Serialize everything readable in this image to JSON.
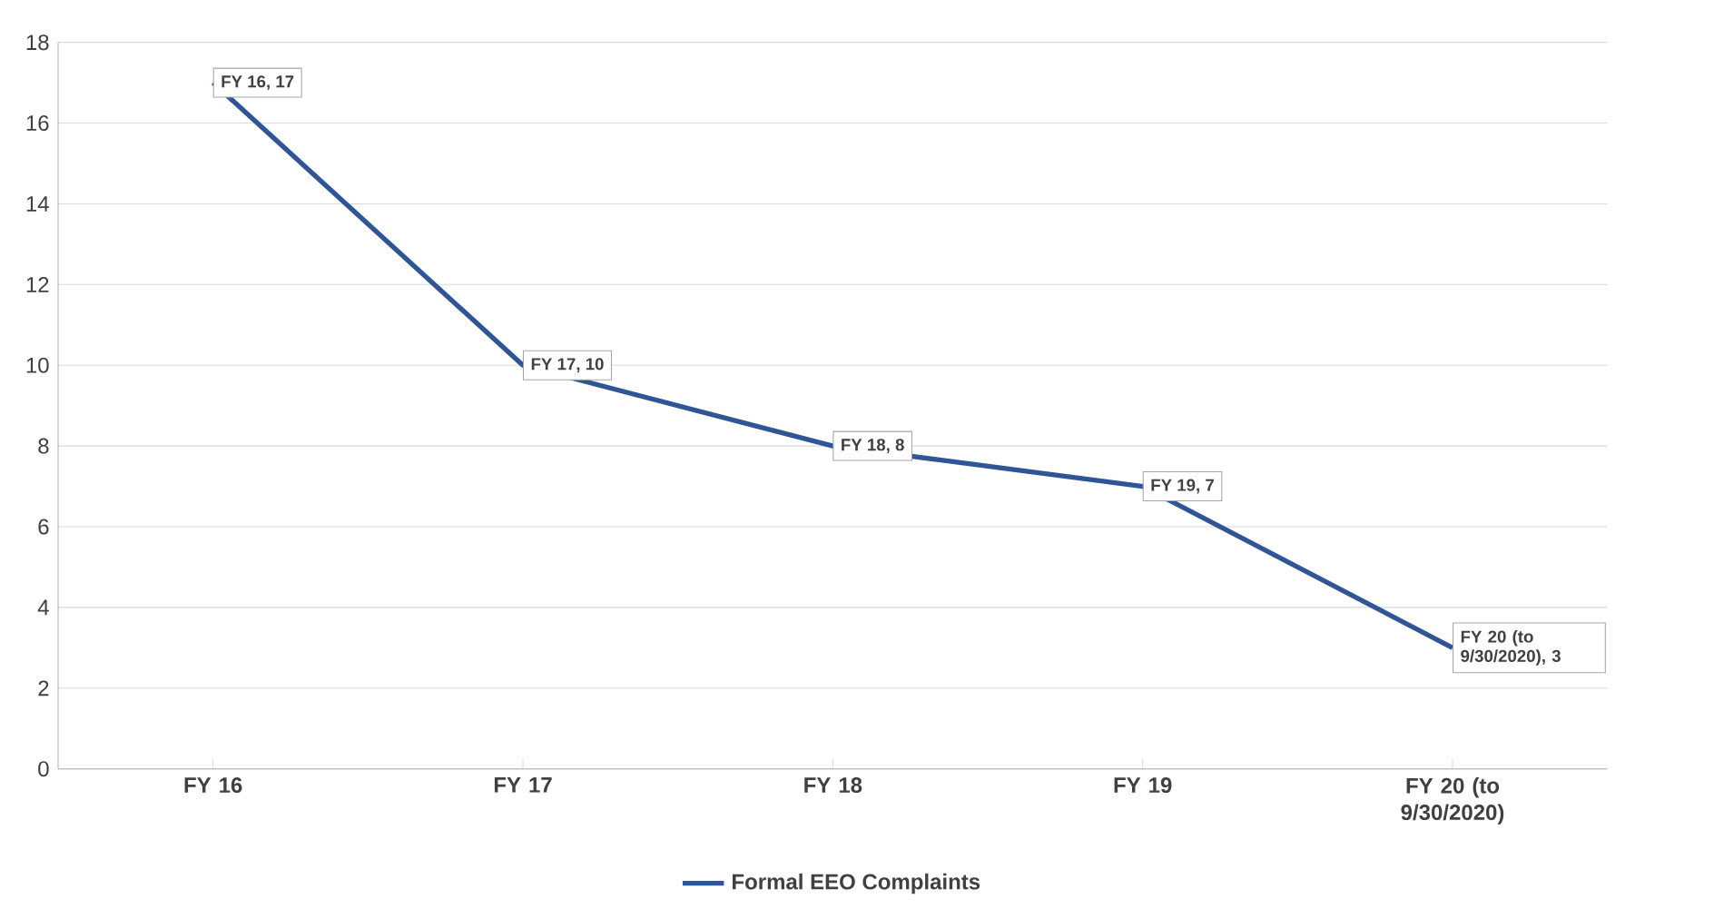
{
  "chart_data": {
    "type": "line",
    "categories": [
      "FY 16",
      "FY 17",
      "FY 18",
      "FY 19",
      "FY 20 (to 9/30/2020)"
    ],
    "series": [
      {
        "name": "Formal EEO Complaints",
        "color": "#2f5597",
        "values": [
          17,
          10,
          8,
          7,
          3
        ],
        "value_labels": [
          "FY 16, 17",
          "FY 17, 10",
          "FY 18, 8",
          "FY 19, 7",
          "FY 20 (to 9/30/2020), 3"
        ]
      }
    ],
    "ylim": [
      0,
      18
    ],
    "yticks": [
      0,
      2,
      4,
      6,
      8,
      10,
      12,
      14,
      16,
      18
    ],
    "grid": "y",
    "legend": "bottom",
    "marker": "none",
    "line_style": "solid"
  }
}
